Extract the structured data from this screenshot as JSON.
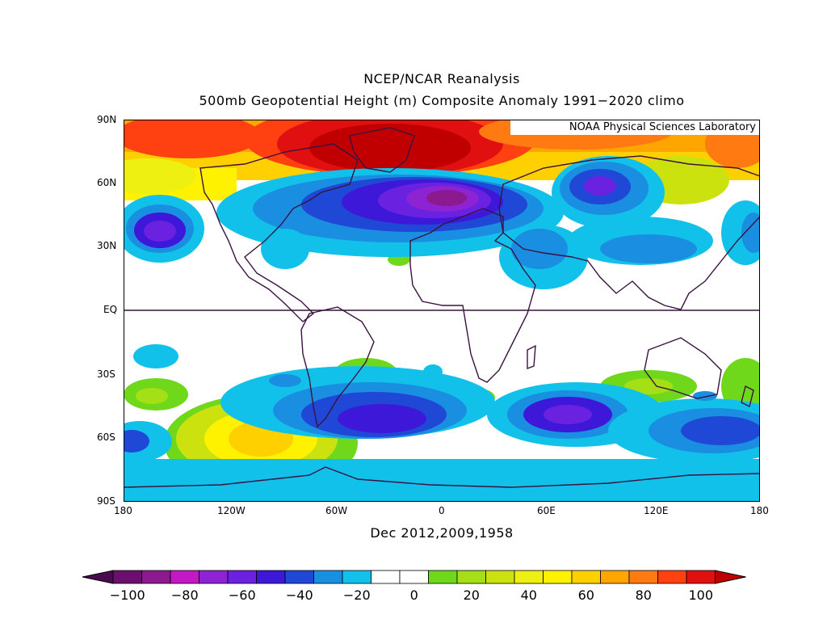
{
  "title_line1": "NCEP/NCAR Reanalysis",
  "title_line2": "500mb Geopotential Height (m) Composite Anomaly 1991−2020 climo",
  "credit": "NOAA Physical Sciences Laboratory",
  "date_label": "Dec 2012,2009,1958",
  "lat_ticks": [
    "90N",
    "60N",
    "30N",
    "EQ",
    "30S",
    "60S",
    "90S"
  ],
  "lon_ticks": [
    "180",
    "120W",
    "60W",
    "0",
    "60E",
    "120E",
    "180"
  ],
  "colorbar": {
    "ticks": [
      "−100",
      "−80",
      "−60",
      "−40",
      "−20",
      "0",
      "20",
      "40",
      "60",
      "80",
      "100"
    ],
    "colors": [
      "#6b0f6e",
      "#8b1a8e",
      "#c418c4",
      "#8e23d4",
      "#6a22e0",
      "#3e18d8",
      "#1f48d6",
      "#1a8ee0",
      "#12c1ea",
      "#ffffff",
      "#ffffff",
      "#6fd81a",
      "#a4e015",
      "#cce20f",
      "#eef012",
      "#fff200",
      "#ffd000",
      "#ffa500",
      "#ff7a10",
      "#ff4010",
      "#e01010"
    ],
    "low_color": "#4a0a4c",
    "high_color": "#c00000"
  },
  "icons": {
    "map": "world-map"
  }
}
